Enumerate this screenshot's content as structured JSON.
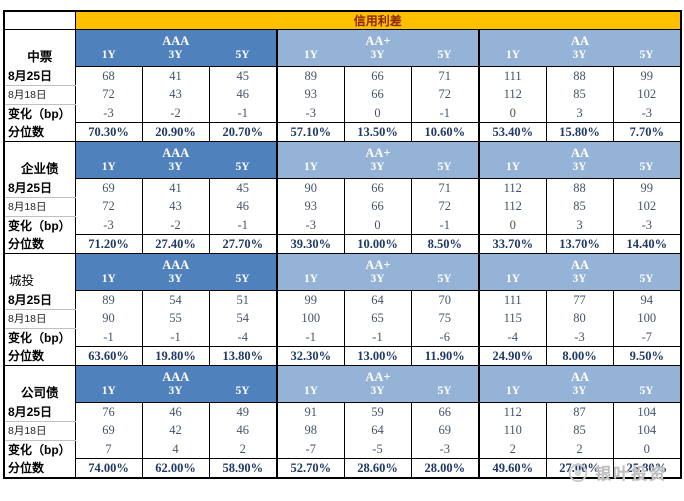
{
  "title": "信用利差",
  "colors": {
    "title_bar": "#FFC000",
    "title_text": "#8B2500",
    "rating_aaa_header": "#4F81BD",
    "rating_aa_header": "#95B3D7",
    "number_text": "#44546A",
    "percentile_text": "#1F3864",
    "watermark_text": "#BDBDBD"
  },
  "ratings": [
    "AAA",
    "AA+",
    "AA"
  ],
  "tenors": [
    "1Y",
    "3Y",
    "5Y"
  ],
  "row_labels": {
    "date1": "8月25日",
    "date2": "8月18日",
    "change": "变化（bp）",
    "percentile": "分位数"
  },
  "sections": [
    {
      "name": "中票",
      "rows": {
        "date1": [
          68,
          41,
          45,
          89,
          66,
          71,
          111,
          88,
          99
        ],
        "date2": [
          72,
          43,
          46,
          93,
          66,
          72,
          112,
          85,
          102
        ],
        "change": [
          -3,
          -2,
          -1,
          -3,
          0,
          -1,
          0,
          3,
          -3
        ],
        "percentile": [
          "70.30%",
          "20.90%",
          "20.70%",
          "57.10%",
          "13.50%",
          "10.60%",
          "53.40%",
          "15.80%",
          "7.70%"
        ]
      }
    },
    {
      "name": "企业债",
      "rows": {
        "date1": [
          69,
          41,
          45,
          90,
          66,
          71,
          112,
          88,
          99
        ],
        "date2": [
          72,
          43,
          46,
          93,
          66,
          72,
          112,
          85,
          102
        ],
        "change": [
          -3,
          -2,
          -1,
          -3,
          0,
          -1,
          0,
          3,
          -3
        ],
        "percentile": [
          "71.20%",
          "27.40%",
          "27.70%",
          "39.30%",
          "10.00%",
          "8.50%",
          "33.70%",
          "13.70%",
          "14.40%"
        ]
      }
    },
    {
      "name": "城投",
      "rows": {
        "date1": [
          89,
          54,
          51,
          99,
          64,
          70,
          111,
          77,
          94
        ],
        "date2": [
          90,
          55,
          54,
          100,
          65,
          75,
          115,
          80,
          100
        ],
        "change": [
          -1,
          -1,
          -4,
          -1,
          -1,
          -6,
          -4,
          -3,
          -7
        ],
        "percentile": [
          "63.60%",
          "19.80%",
          "13.80%",
          "32.30%",
          "13.00%",
          "11.90%",
          "24.90%",
          "8.00%",
          "9.50%"
        ]
      }
    },
    {
      "name": "公司债",
      "rows": {
        "date1": [
          76,
          46,
          49,
          91,
          59,
          66,
          112,
          87,
          104
        ],
        "date2": [
          69,
          42,
          46,
          98,
          64,
          69,
          110,
          85,
          104
        ],
        "change": [
          7,
          4,
          2,
          -7,
          -5,
          -3,
          2,
          2,
          0
        ],
        "percentile": [
          "74.00%",
          "62.00%",
          "58.90%",
          "52.70%",
          "28.60%",
          "28.00%",
          "49.60%",
          "27.00%",
          "25.80%"
        ]
      }
    }
  ],
  "watermark": {
    "label": "银叶投资"
  }
}
